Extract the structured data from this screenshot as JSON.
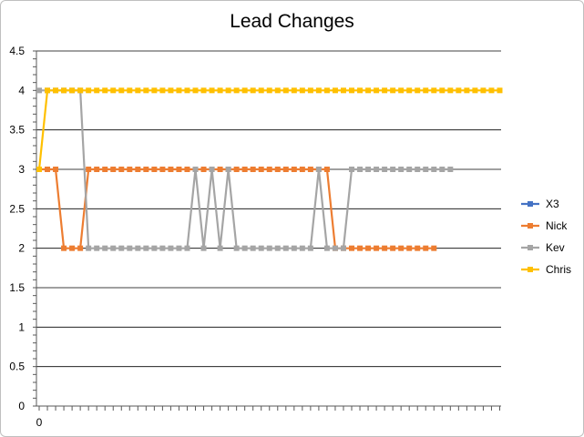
{
  "chart_data": {
    "type": "line",
    "title": "Lead Changes",
    "xlabel": "",
    "ylabel": "",
    "ylim": [
      0,
      4.5
    ],
    "y_ticks": [
      "0",
      "0.5",
      "1",
      "1.5",
      "2",
      "2.5",
      "3",
      "3.5",
      "4",
      "4.5"
    ],
    "x_tick_labels": [
      "0"
    ],
    "x_count": 57,
    "grid": "horizontal",
    "legend_position": "right",
    "series": [
      {
        "name": "X3",
        "color": "#4472c4",
        "values": []
      },
      {
        "name": "Nick",
        "color": "#ed7d31",
        "values": [
          3,
          3,
          3,
          2,
          2,
          2,
          3,
          3,
          3,
          3,
          3,
          3,
          3,
          3,
          3,
          3,
          3,
          3,
          3,
          3,
          3,
          3,
          3,
          3,
          3,
          3,
          3,
          3,
          3,
          3,
          3,
          3,
          3,
          3,
          3,
          3,
          2,
          2,
          2,
          2,
          2,
          2,
          2,
          2,
          2,
          2,
          2,
          2,
          2
        ]
      },
      {
        "name": "Kev",
        "color": "#a5a5a5",
        "values": [
          4,
          4,
          4,
          4,
          4,
          4,
          2,
          2,
          2,
          2,
          2,
          2,
          2,
          2,
          2,
          2,
          2,
          2,
          2,
          3,
          2,
          3,
          2,
          3,
          2,
          2,
          2,
          2,
          2,
          2,
          2,
          2,
          2,
          2,
          3,
          2,
          2,
          2,
          3,
          3,
          3,
          3,
          3,
          3,
          3,
          3,
          3,
          3,
          3,
          3,
          3
        ]
      },
      {
        "name": "Chris",
        "color": "#ffc000",
        "values": [
          3,
          4,
          4,
          4,
          4,
          4,
          4,
          4,
          4,
          4,
          4,
          4,
          4,
          4,
          4,
          4,
          4,
          4,
          4,
          4,
          4,
          4,
          4,
          4,
          4,
          4,
          4,
          4,
          4,
          4,
          4,
          4,
          4,
          4,
          4,
          4,
          4,
          4,
          4,
          4,
          4,
          4,
          4,
          4,
          4,
          4,
          4,
          4,
          4,
          4,
          4,
          4,
          4,
          4,
          4,
          4,
          4
        ]
      }
    ]
  }
}
